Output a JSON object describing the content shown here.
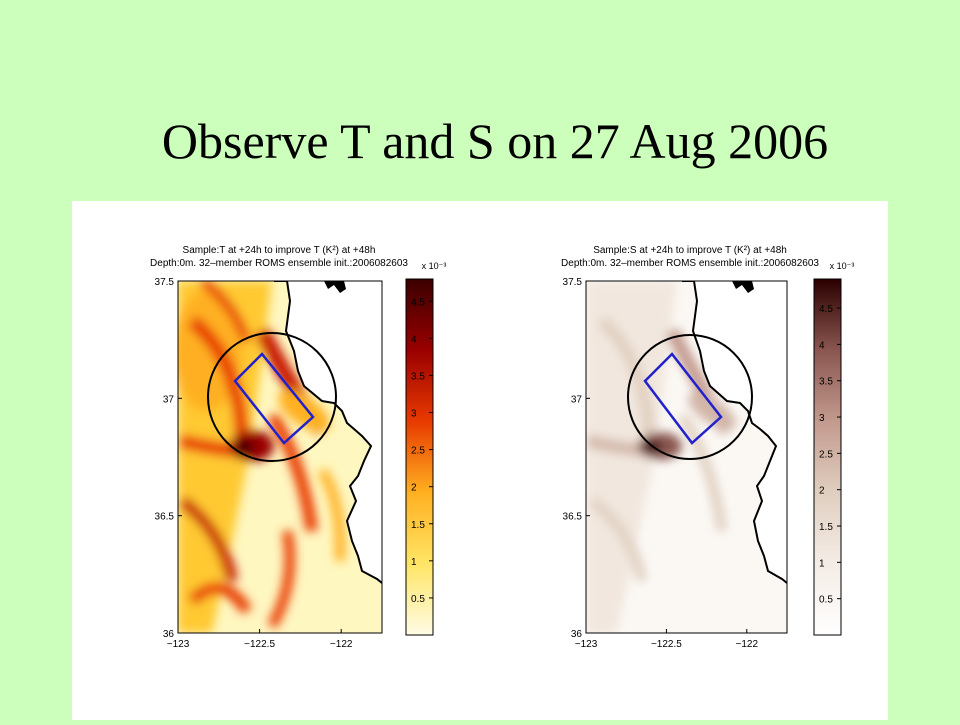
{
  "slide": {
    "title": "Observe T and S on 27 Aug 2006"
  },
  "colors": {
    "background": "#ccffbb",
    "panel": "#ffffff",
    "box": "#2222cc",
    "circle": "#000000",
    "coast": "#000000"
  },
  "chart_data": [
    {
      "type": "heatmap",
      "title_line1": "Sample:T at +24h to improve T (K²) at +48h",
      "title_line2": "Depth:0m. 32–member ROMS ensemble init.:2006082603",
      "colormap": "hot",
      "colormap_colors": [
        "#fffbe6",
        "#ffe566",
        "#ffb020",
        "#e83a00",
        "#9a0000",
        "#3a0000"
      ],
      "colorbar_exponent_label": "x 10⁻³",
      "x_tick_labels": [
        "−123",
        "−122.5",
        "−122"
      ],
      "y_tick_labels": [
        "36",
        "36.5",
        "37",
        "37.5"
      ],
      "x_ticks": [
        -123,
        -122.5,
        -122
      ],
      "y_ticks": [
        36,
        36.5,
        37,
        37.5
      ],
      "xlim": [
        -123,
        -121.75
      ],
      "ylim": [
        36,
        37.5
      ],
      "colorbar_ticks": [
        0.5,
        1,
        1.5,
        2,
        2.5,
        3,
        3.5,
        4,
        4.5
      ],
      "colorbar_tick_labels": [
        "0.5",
        "1",
        "1.5",
        "2",
        "2.5",
        "3",
        "3.5",
        "4",
        "4.5"
      ],
      "clim": [
        0,
        4.8
      ]
    },
    {
      "type": "heatmap",
      "title_line1": "Sample:S at +24h to improve T (K²) at +48h",
      "title_line2": "Depth:0m. 32–member ROMS ensemble init.:2006082603",
      "colormap": "pink",
      "colormap_colors": [
        "#ffffff",
        "#f4ece6",
        "#e0cfc0",
        "#c39a8e",
        "#8a5650",
        "#2a0000"
      ],
      "colorbar_exponent_label": "x 10⁻³",
      "x_tick_labels": [
        "−123",
        "−122.5",
        "−122"
      ],
      "y_tick_labels": [
        "36",
        "36.5",
        "37",
        "37.5"
      ],
      "x_ticks": [
        -123,
        -122.5,
        -122
      ],
      "y_ticks": [
        36,
        36.5,
        37,
        37.5
      ],
      "xlim": [
        -123,
        -121.75
      ],
      "ylim": [
        36,
        37.5
      ],
      "colorbar_ticks": [
        0.5,
        1,
        1.5,
        2,
        2.5,
        3,
        3.5,
        4,
        4.5
      ],
      "colorbar_tick_labels": [
        "0.5",
        "1",
        "1.5",
        "2",
        "2.5",
        "3",
        "3.5",
        "4",
        "4.5"
      ],
      "clim": [
        0,
        4.9
      ]
    }
  ]
}
